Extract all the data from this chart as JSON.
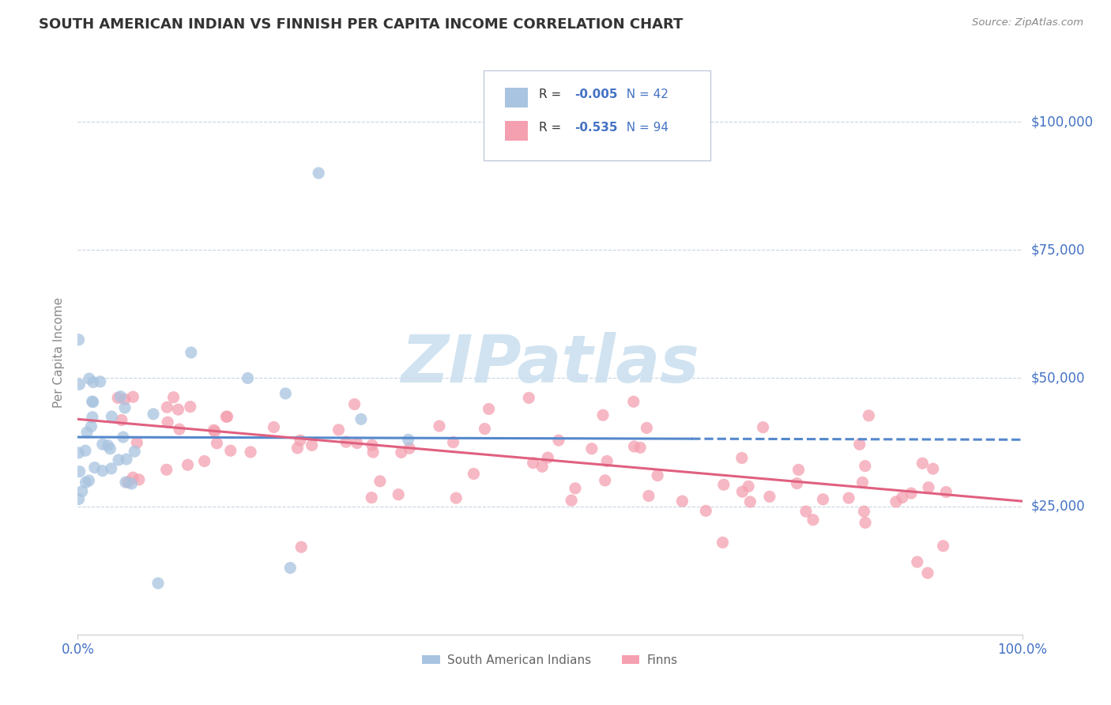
{
  "title": "SOUTH AMERICAN INDIAN VS FINNISH PER CAPITA INCOME CORRELATION CHART",
  "source_text": "Source: ZipAtlas.com",
  "ylabel": "Per Capita Income",
  "xlim": [
    0.0,
    1.0
  ],
  "ylim": [
    0,
    110000
  ],
  "ytick_vals": [
    25000,
    50000,
    75000,
    100000
  ],
  "ytick_labels": [
    "$25,000",
    "$50,000",
    "$75,000",
    "$100,000"
  ],
  "color_blue": "#a8c4e0",
  "color_pink": "#f4a0b0",
  "line_blue": "#5588cc",
  "line_pink": "#e06080",
  "axis_label_color": "#4472c4",
  "title_color": "#333333",
  "watermark": "ZIPatlas",
  "watermark_color": "#cce0f0",
  "background_color": "#ffffff",
  "grid_color": "#c8d4e0",
  "blue_r": -0.005,
  "blue_n": 42,
  "pink_r": -0.535,
  "pink_n": 94,
  "blue_intercept": 38500,
  "blue_slope": -500,
  "pink_intercept": 42000,
  "pink_slope": -16000
}
